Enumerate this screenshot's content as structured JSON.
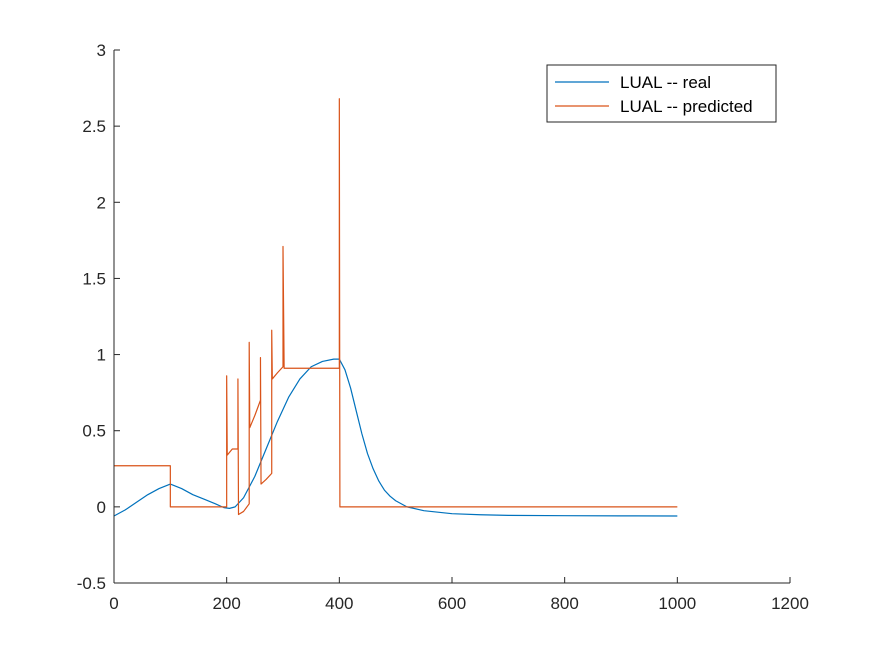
{
  "chart_data": {
    "type": "line",
    "title": "",
    "xlabel": "",
    "ylabel": "",
    "xlim": [
      0,
      1200
    ],
    "ylim": [
      -0.5,
      3
    ],
    "x_ticks": [
      0,
      200,
      400,
      600,
      800,
      1000,
      1200
    ],
    "y_ticks": [
      -0.5,
      0,
      0.5,
      1,
      1.5,
      2,
      2.5,
      3
    ],
    "x_tick_labels": [
      "0",
      "200",
      "400",
      "600",
      "800",
      "1000",
      "1200"
    ],
    "y_tick_labels": [
      "-0.5",
      "0",
      "0.5",
      "1",
      "1.5",
      "2",
      "2.5",
      "3"
    ],
    "grid": false,
    "legend_position": "top-right",
    "series": [
      {
        "name": "LUAL -- real",
        "color": "#0072BD",
        "points": [
          [
            0,
            -0.06
          ],
          [
            20,
            -0.02
          ],
          [
            40,
            0.03
          ],
          [
            60,
            0.08
          ],
          [
            80,
            0.12
          ],
          [
            100,
            0.15
          ],
          [
            120,
            0.12
          ],
          [
            140,
            0.08
          ],
          [
            160,
            0.05
          ],
          [
            180,
            0.02
          ],
          [
            195,
            -0.005
          ],
          [
            205,
            -0.01
          ],
          [
            215,
            0.0
          ],
          [
            230,
            0.06
          ],
          [
            250,
            0.2
          ],
          [
            270,
            0.38
          ],
          [
            290,
            0.56
          ],
          [
            310,
            0.72
          ],
          [
            330,
            0.84
          ],
          [
            350,
            0.92
          ],
          [
            370,
            0.955
          ],
          [
            390,
            0.97
          ],
          [
            400,
            0.97
          ],
          [
            410,
            0.9
          ],
          [
            420,
            0.78
          ],
          [
            430,
            0.63
          ],
          [
            440,
            0.48
          ],
          [
            450,
            0.35
          ],
          [
            460,
            0.25
          ],
          [
            470,
            0.17
          ],
          [
            480,
            0.11
          ],
          [
            490,
            0.07
          ],
          [
            500,
            0.04
          ],
          [
            520,
            0.0
          ],
          [
            550,
            -0.025
          ],
          [
            600,
            -0.045
          ],
          [
            650,
            -0.052
          ],
          [
            700,
            -0.056
          ],
          [
            800,
            -0.058
          ],
          [
            900,
            -0.059
          ],
          [
            1000,
            -0.06
          ]
        ]
      },
      {
        "name": "LUAL -- predicted",
        "color": "#D95319",
        "points": [
          [
            0,
            0.27
          ],
          [
            100,
            0.27
          ],
          [
            100,
            0.0
          ],
          [
            200,
            0.0
          ],
          [
            200,
            0.86
          ],
          [
            201,
            0.34
          ],
          [
            210,
            0.38
          ],
          [
            220,
            0.38
          ],
          [
            220,
            0.84
          ],
          [
            221,
            -0.05
          ],
          [
            230,
            -0.03
          ],
          [
            240,
            0.02
          ],
          [
            240,
            1.08
          ],
          [
            241,
            0.52
          ],
          [
            250,
            0.6
          ],
          [
            260,
            0.7
          ],
          [
            260,
            0.98
          ],
          [
            261,
            0.15
          ],
          [
            270,
            0.18
          ],
          [
            280,
            0.22
          ],
          [
            280,
            1.16
          ],
          [
            281,
            0.84
          ],
          [
            290,
            0.88
          ],
          [
            300,
            0.92
          ],
          [
            300,
            1.71
          ],
          [
            302,
            0.91
          ],
          [
            320,
            0.91
          ],
          [
            380,
            0.91
          ],
          [
            400,
            0.91
          ],
          [
            400,
            2.68
          ],
          [
            401,
            0.0
          ],
          [
            500,
            0.0
          ],
          [
            700,
            0.0
          ],
          [
            1000,
            0.0
          ]
        ]
      }
    ]
  }
}
